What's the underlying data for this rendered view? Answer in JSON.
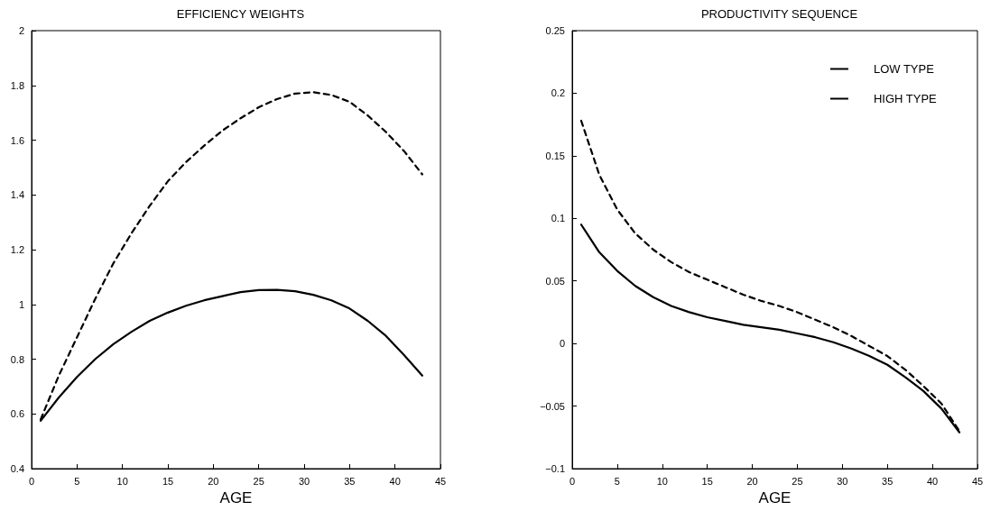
{
  "chart_data": [
    {
      "type": "line",
      "title": "EFFICIENCY WEIGHTS",
      "xlabel": "AGE",
      "x": [
        1,
        3,
        5,
        7,
        9,
        11,
        13,
        15,
        17,
        19,
        21,
        23,
        25,
        27,
        29,
        31,
        33,
        35,
        37,
        39,
        41,
        43
      ],
      "xlim": [
        0,
        45
      ],
      "xticks": [
        0,
        5,
        10,
        15,
        20,
        25,
        30,
        35,
        40,
        45
      ],
      "ylim": [
        0.4,
        2
      ],
      "yticks": [
        0.4,
        0.6,
        0.8,
        1,
        1.2,
        1.4,
        1.6,
        1.8,
        2
      ],
      "grid": false,
      "legend": false,
      "marker": "none",
      "series": [
        {
          "color": "#000000",
          "line_style": "solid",
          "values": [
            0.575,
            0.66,
            0.735,
            0.8,
            0.855,
            0.9,
            0.94,
            0.97,
            0.995,
            1.015,
            1.03,
            1.045,
            1.052,
            1.053,
            1.048,
            1.035,
            1.015,
            0.985,
            0.94,
            0.885,
            0.815,
            0.74
          ]
        },
        {
          "color": "#000000",
          "line_style": "dashed",
          "values": [
            0.58,
            0.74,
            0.88,
            1.02,
            1.15,
            1.26,
            1.36,
            1.45,
            1.52,
            1.58,
            1.635,
            1.68,
            1.72,
            1.75,
            1.77,
            1.775,
            1.765,
            1.74,
            1.69,
            1.63,
            1.56,
            1.475
          ]
        }
      ]
    },
    {
      "type": "line",
      "title": "PRODUCTIVITY SEQUENCE",
      "xlabel": "AGE",
      "x": [
        1,
        3,
        5,
        7,
        9,
        11,
        13,
        15,
        17,
        19,
        21,
        23,
        25,
        27,
        29,
        31,
        33,
        35,
        37,
        39,
        41,
        43
      ],
      "xlim": [
        0,
        45
      ],
      "xticks": [
        0,
        5,
        10,
        15,
        20,
        25,
        30,
        35,
        40,
        45
      ],
      "ylim": [
        -0.1,
        0.25
      ],
      "yticks": [
        -0.1,
        -0.05,
        0,
        0.05,
        0.1,
        0.15,
        0.2,
        0.25
      ],
      "grid": false,
      "legend": "top right",
      "marker": "none",
      "series": [
        {
          "name": "LOW TYPE",
          "color": "#000000",
          "line_style": "solid",
          "values": [
            0.095,
            0.073,
            0.058,
            0.046,
            0.037,
            0.03,
            0.025,
            0.021,
            0.018,
            0.015,
            0.013,
            0.011,
            0.008,
            0.005,
            0.001,
            -0.004,
            -0.01,
            -0.017,
            -0.027,
            -0.038,
            -0.052,
            -0.071
          ]
        },
        {
          "name": "HIGH TYPE",
          "color": "#000000",
          "line_style": "dashed",
          "values": [
            0.178,
            0.135,
            0.107,
            0.088,
            0.075,
            0.065,
            0.057,
            0.051,
            0.045,
            0.039,
            0.034,
            0.03,
            0.025,
            0.019,
            0.013,
            0.006,
            -0.002,
            -0.01,
            -0.021,
            -0.034,
            -0.048,
            -0.07
          ]
        }
      ]
    }
  ]
}
